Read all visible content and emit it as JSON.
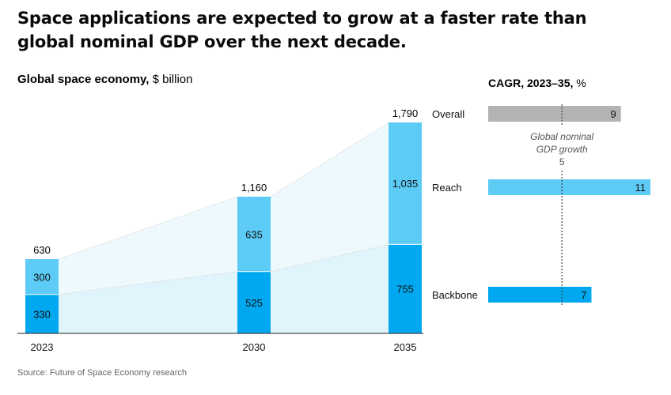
{
  "headline": "Space applications are expected to grow at a faster rate than global nominal GDP over the next decade.",
  "source": "Source: Future of Space Economy research",
  "colors": {
    "reach": "#5ccbf5",
    "backbone": "#00a9ef",
    "overall": "#b3b3b3",
    "band_reach": "#eef9fd",
    "band_backbone": "#e0f4fc"
  },
  "chart_data": [
    {
      "type": "bar",
      "stacked": true,
      "title": "Global space economy,",
      "unit": "$ billion",
      "categories": [
        "2023",
        "2030",
        "2035"
      ],
      "series": [
        {
          "name": "Backbone",
          "values": [
            330,
            525,
            755
          ],
          "labels": [
            "330",
            "525",
            "755"
          ]
        },
        {
          "name": "Reach",
          "values": [
            300,
            635,
            1035
          ],
          "labels": [
            "300",
            "635",
            "1,035"
          ]
        }
      ],
      "totals": [
        630,
        1160,
        1790
      ],
      "total_labels": [
        "630",
        "1,160",
        "1,790"
      ],
      "ylim": [
        0,
        1790
      ]
    },
    {
      "type": "bar",
      "orientation": "horizontal",
      "title": "CAGR, 2023–35,",
      "unit": "%",
      "categories": [
        "Overall",
        "Reach",
        "Backbone"
      ],
      "values": [
        9,
        11,
        7
      ],
      "value_labels": [
        "9",
        "11",
        "7"
      ],
      "xlim": [
        0,
        11
      ],
      "reference_line": {
        "label_line1": "Global nominal",
        "label_line2": "GDP growth",
        "value": 5,
        "value_label": "5"
      }
    }
  ]
}
